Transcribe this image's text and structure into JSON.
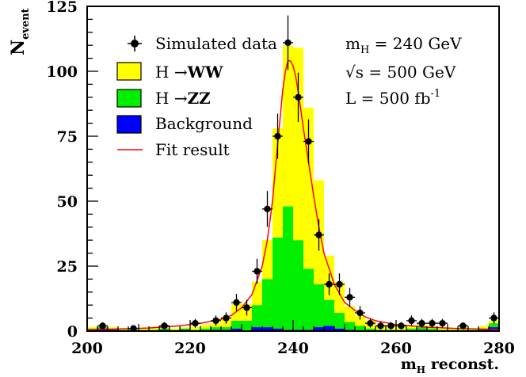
{
  "chart_data": {
    "type": "bar",
    "stacked": true,
    "title": "",
    "ylabel_main": "N",
    "ylabel_sub": "event",
    "xlabel_main": "m",
    "xlabel_sub": "H",
    "xlabel_rest": " reconst.",
    "xlim": [
      200,
      280
    ],
    "ylim": [
      0,
      125
    ],
    "x_ticks": [
      200,
      220,
      240,
      260,
      280
    ],
    "y_ticks": [
      0,
      25,
      50,
      75,
      100,
      125
    ],
    "bin_width": 2,
    "bin_starts": [
      200,
      202,
      204,
      206,
      208,
      210,
      212,
      214,
      216,
      218,
      220,
      222,
      224,
      226,
      228,
      230,
      232,
      234,
      236,
      238,
      240,
      242,
      244,
      246,
      248,
      250,
      252,
      254,
      256,
      258,
      260,
      262,
      264,
      266,
      268,
      270,
      272,
      274,
      276,
      278
    ],
    "series": [
      {
        "name": "Background",
        "color": "#0000ff",
        "values": [
          0.5,
          1,
          0.5,
          0,
          0,
          0,
          0,
          0.5,
          0,
          0.5,
          0,
          0,
          0.5,
          0.5,
          1,
          0,
          1.5,
          1.5,
          1,
          0.5,
          0.5,
          0.5,
          1.5,
          2,
          1,
          0.5,
          0,
          0,
          0,
          0,
          0,
          0,
          0.5,
          0,
          0,
          0,
          0,
          0,
          0.5,
          1.5
        ]
      },
      {
        "name": "H → ZZ",
        "color": "#00ee00",
        "values": [
          0.5,
          0.5,
          0.5,
          0.5,
          0.5,
          0.5,
          0.5,
          0.5,
          0.5,
          0.5,
          0.5,
          1,
          1,
          1,
          3,
          4,
          8.5,
          18.5,
          35,
          47.5,
          34.5,
          23.5,
          16.5,
          10,
          6,
          3,
          2,
          1,
          0.5,
          0.5,
          0.5,
          1,
          1,
          1,
          0.5,
          0.5,
          0.5,
          0.5,
          0.5,
          1.5
        ]
      },
      {
        "name": "H → WW",
        "color": "#ffff00",
        "values": [
          0.5,
          0.5,
          0.5,
          0.5,
          0.5,
          0.5,
          1,
          0.5,
          0.5,
          0.5,
          1,
          1.5,
          1.5,
          3,
          6.5,
          6.5,
          9,
          15,
          42,
          62,
          74,
          62,
          40,
          17,
          12,
          6,
          4,
          3,
          2,
          1,
          1,
          1,
          1,
          1,
          0.5,
          0.5,
          1,
          0.5,
          1,
          1
        ]
      }
    ],
    "data_points": {
      "name": "Simulated data",
      "x": [
        203,
        209,
        215,
        221,
        225,
        227,
        229,
        231,
        233,
        235,
        237,
        239,
        241,
        243,
        245,
        247,
        249,
        251,
        253,
        255,
        257,
        259,
        261,
        263,
        265,
        267,
        269,
        273,
        279
      ],
      "y": [
        2,
        1,
        2,
        3,
        4,
        5,
        11,
        9,
        23,
        47,
        75,
        111,
        90,
        73,
        37,
        18,
        18,
        13,
        7,
        3,
        2,
        2,
        2,
        4,
        3,
        3,
        3,
        2,
        5
      ],
      "err": [
        1.4,
        1,
        1.4,
        1.7,
        2,
        2.2,
        3.3,
        3,
        4.8,
        6.9,
        8.7,
        10.5,
        9.5,
        8.5,
        6.1,
        4.2,
        4.2,
        3.6,
        2.6,
        1.7,
        1.4,
        1.4,
        1.4,
        2,
        1.7,
        1.7,
        1.7,
        1.4,
        2.2
      ]
    },
    "fit": {
      "name": "Fit result",
      "color": "#ff0000",
      "x": [
        200,
        206,
        212,
        218,
        222,
        226,
        228,
        230,
        232,
        234,
        235,
        236,
        237,
        238,
        238.5,
        239,
        239.5,
        240,
        240.5,
        241,
        242,
        243,
        244,
        245,
        246,
        248,
        250,
        252,
        254,
        256,
        260,
        266,
        272,
        280
      ],
      "y": [
        0.5,
        0.8,
        1.2,
        2,
        3,
        4.5,
        6,
        9,
        14,
        25,
        35,
        50,
        72,
        93,
        100,
        104,
        104,
        102,
        98,
        92,
        78,
        65,
        52,
        40,
        30,
        18,
        11,
        8,
        5.5,
        4,
        2.5,
        1.5,
        1,
        0.6
      ]
    },
    "legend": [
      {
        "key": "data",
        "label": "Simulated data"
      },
      {
        "key": "ww",
        "label": "H → WW",
        "label_main": "H ",
        "arrow": "→",
        "label_bold": "WW",
        "color": "#ffff00"
      },
      {
        "key": "zz",
        "label": "H → ZZ",
        "label_main": "H ",
        "arrow": "→",
        "label_bold": "ZZ",
        "color": "#00ee00"
      },
      {
        "key": "bg",
        "label": "Background",
        "color": "#0000ff"
      },
      {
        "key": "fit",
        "label": "Fit result",
        "color": "#ff0000"
      }
    ],
    "annotations": {
      "mass_main": "m",
      "mass_sub": "H",
      "mass_rest": " = 240 GeV",
      "sqrt_symbol": "√",
      "energy_rest": "s = 500 GeV",
      "lumi_main": "L = 500 fb",
      "lumi_sup": "-1"
    },
    "legend_position": "top-left"
  }
}
